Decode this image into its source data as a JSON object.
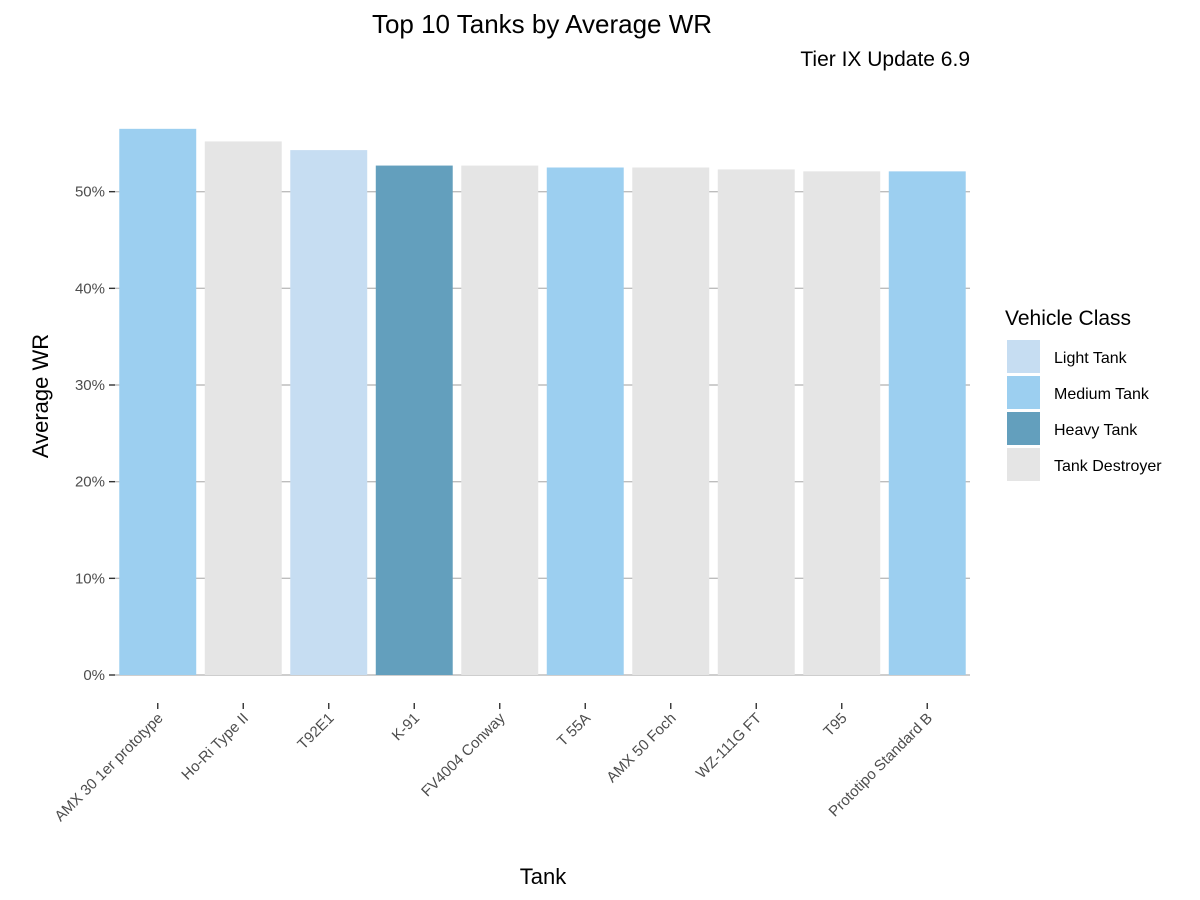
{
  "chart_data": {
    "type": "bar",
    "title": "Top 10 Tanks by Average WR",
    "subtitle": "Tier IX Update 6.9",
    "xlabel": "Tank",
    "ylabel": "Average WR",
    "ylim": [
      0,
      0.6
    ],
    "yticks": [
      0,
      0.1,
      0.2,
      0.3,
      0.4,
      0.5
    ],
    "ytick_labels": [
      "0%",
      "10%",
      "20%",
      "30%",
      "40%",
      "50%"
    ],
    "grid": "horizontal major",
    "categories": [
      "AMX 30 1er prototype",
      "Ho-Ri Type II",
      "T92E1",
      "K-91",
      "FV4004 Conway",
      "T 55A",
      "AMX 50 Foch",
      "WZ-111G FT",
      "T95",
      "Prototipo Standard B"
    ],
    "values": [
      0.565,
      0.552,
      0.543,
      0.527,
      0.527,
      0.525,
      0.525,
      0.523,
      0.521,
      0.521
    ],
    "classes": [
      "Medium Tank",
      "Tank Destroyer",
      "Light Tank",
      "Heavy Tank",
      "Tank Destroyer",
      "Medium Tank",
      "Tank Destroyer",
      "Tank Destroyer",
      "Tank Destroyer",
      "Medium Tank"
    ],
    "legend": {
      "title": "Vehicle Class",
      "position": "right",
      "entries": [
        {
          "label": "Light Tank",
          "color": "#c6ddf2"
        },
        {
          "label": "Medium Tank",
          "color": "#9ccff0"
        },
        {
          "label": "Heavy Tank",
          "color": "#639fbd"
        },
        {
          "label": "Tank Destroyer",
          "color": "#e5e5e5"
        }
      ]
    }
  }
}
